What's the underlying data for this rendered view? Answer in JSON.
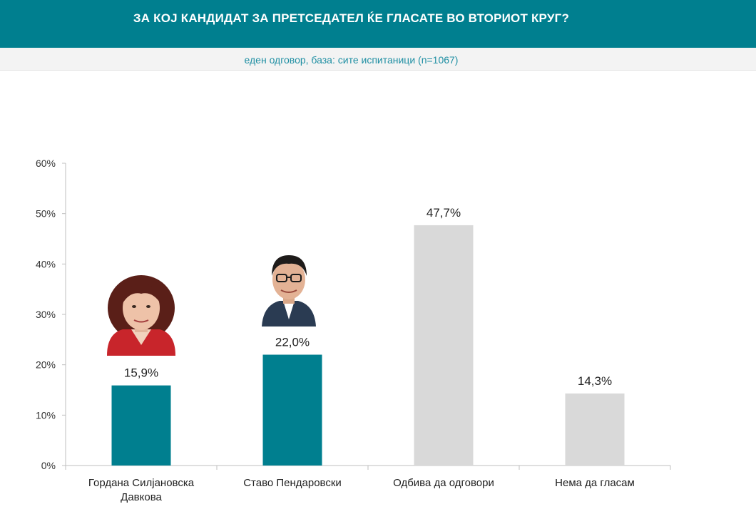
{
  "header": {
    "title": "ЗА КОЈ КАНДИДАТ ЗА ПРЕТСЕДАТЕЛ ЌЕ ГЛАСАТЕ ВО ВТОРИОТ КРУГ?",
    "subtitle": "еден одговор, база: сите испитаници (n=1067)"
  },
  "chart_data": {
    "type": "bar",
    "categories": [
      [
        "Гордана Силјановска",
        "Давкова"
      ],
      [
        "Ставо Пендаровски"
      ],
      [
        "Одбива да одговори"
      ],
      [
        "Нема да гласам"
      ]
    ],
    "values": [
      15.9,
      22.0,
      47.7,
      14.3
    ],
    "data_labels": [
      "15,9%",
      "22,0%",
      "47,7%",
      "14,3%"
    ],
    "ylim": [
      0,
      60
    ],
    "yticks": [
      0,
      10,
      20,
      30,
      40,
      50,
      60
    ],
    "ytick_labels": [
      "0%",
      "10%",
      "20%",
      "30%",
      "40%",
      "50%",
      "60%"
    ],
    "bar_colors": [
      "#007f8f",
      "#007f8f",
      "#d9d9d9",
      "#d9d9d9"
    ],
    "candidate_photos": [
      "woman-portrait",
      "man-portrait"
    ],
    "grid": false,
    "legend": "none"
  }
}
